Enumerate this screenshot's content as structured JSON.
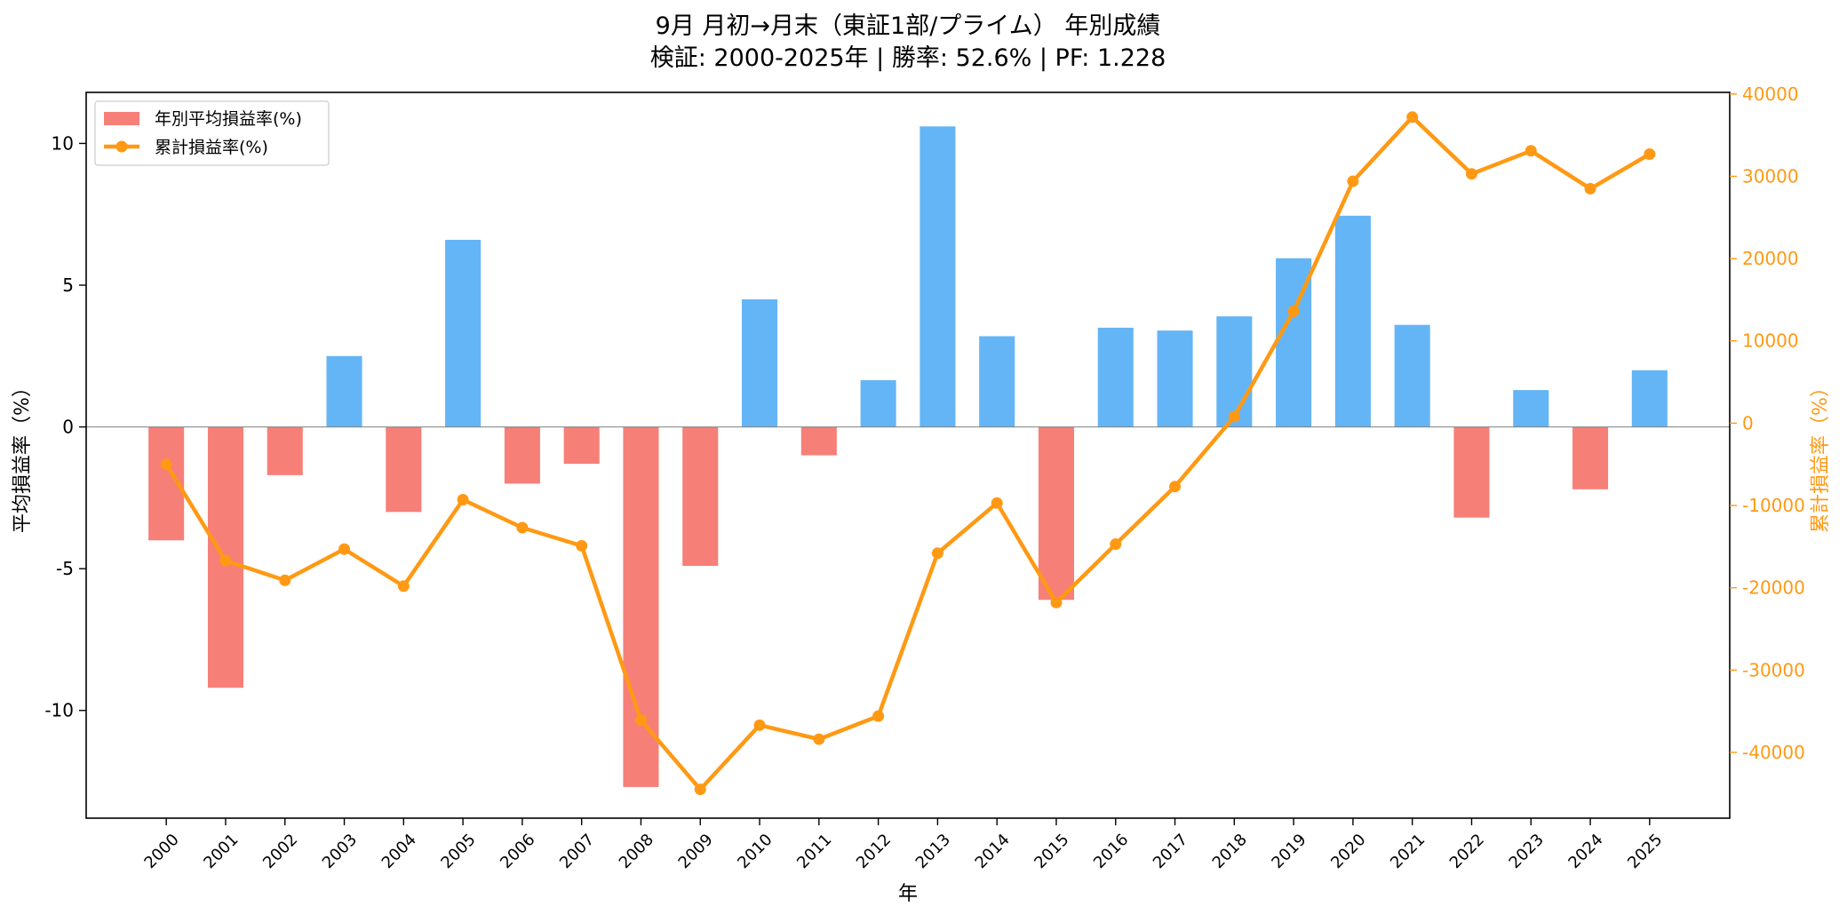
{
  "chart_data": {
    "type": "bar+line",
    "title": "9月 月初→月末（東証1部/プライム） 年別成績",
    "subtitle": "検証: 2000-2025年 | 勝率: 52.6% | PF: 1.228",
    "xlabel": "年",
    "ylabel_left": "平均損益率（%）",
    "ylabel_right": "累計損益率（%）",
    "categories": [
      "2000",
      "2001",
      "2002",
      "2003",
      "2004",
      "2005",
      "2006",
      "2007",
      "2008",
      "2009",
      "2010",
      "2011",
      "2012",
      "2013",
      "2014",
      "2015",
      "2016",
      "2017",
      "2018",
      "2019",
      "2020",
      "2021",
      "2022",
      "2023",
      "2024",
      "2025"
    ],
    "series": [
      {
        "name": "年別平均損益率(%)",
        "type": "bar",
        "axis": "left",
        "values": [
          -4.0,
          -9.2,
          -1.7,
          2.5,
          -3.0,
          6.6,
          -2.0,
          -1.3,
          -12.7,
          -4.9,
          4.5,
          -1.0,
          1.65,
          10.6,
          3.2,
          -6.1,
          3.5,
          3.4,
          3.9,
          5.95,
          7.45,
          3.6,
          -3.2,
          1.3,
          -2.2,
          2.0
        ]
      },
      {
        "name": "累計損益率(%)",
        "type": "line",
        "axis": "right",
        "values": [
          -5000,
          -16700,
          -19100,
          -15300,
          -19800,
          -9300,
          -12700,
          -14900,
          -36100,
          -44500,
          -36700,
          -38400,
          -35600,
          -15800,
          -9700,
          -21800,
          -14700,
          -7700,
          800,
          13600,
          29400,
          37200,
          30300,
          33100,
          28500,
          32700
        ]
      }
    ],
    "ylim_left": [
      -13.8,
      11.8
    ],
    "yticks_left": [
      10,
      5,
      0,
      -5,
      -10
    ],
    "ylim_right": [
      -48000,
      40200
    ],
    "yticks_right": [
      40000,
      30000,
      20000,
      10000,
      0,
      -10000,
      -20000,
      -30000,
      -40000
    ],
    "legend_position": "upper-left",
    "grid": false,
    "colors": {
      "positive_bar": "#64b5f6",
      "negative_bar": "#f67f78",
      "line": "#ff9914",
      "right_axis": "#ff9914",
      "zero_line": "#808080"
    }
  }
}
